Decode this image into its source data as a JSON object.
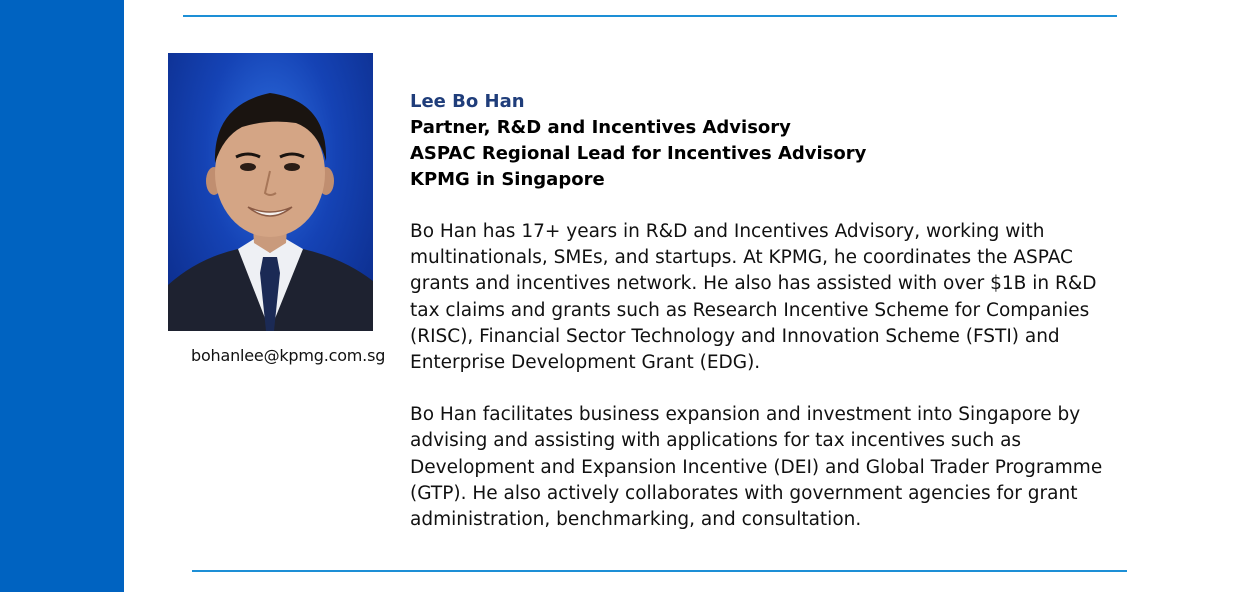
{
  "profile": {
    "name": "Lee Bo Han",
    "titles": [
      "Partner, R&D and Incentives Advisory",
      "ASPAC Regional Lead for Incentives Advisory",
      "KPMG in Singapore"
    ],
    "email": "bohanlee@kpmg.com.sg",
    "bio": [
      "Bo Han has 17+ years in R&D and Incentives Advisory, working with multinationals, SMEs, and startups. At KPMG, he coordinates the ASPAC grants and incentives network. He also has assisted with over $1B in R&D tax claims and grants such as Research Incentive Scheme for Companies (RISC), Financial Sector Technology and Innovation Scheme (FSTI) and Enterprise Development Grant (EDG).",
      "Bo Han facilitates  business expansion and investment into Singapore by advising and assisting with applications for tax incentives such as Development and Expansion Incentive (DEI) and Global Trader Programme (GTP). He also actively collaborates with government agencies for grant administration, benchmarking, and consultation."
    ]
  },
  "colors": {
    "sidebar": "#0063c1",
    "rule": "#1d8fd6",
    "name": "#1f3d7a"
  }
}
